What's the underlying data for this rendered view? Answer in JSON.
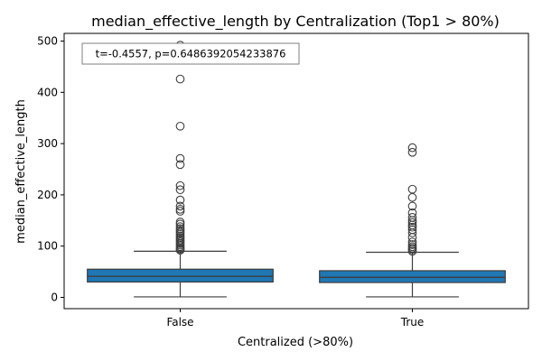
{
  "chart_data": {
    "type": "box",
    "title": "median_effective_length by Centralization (Top1 > 80%)",
    "xlabel": "Centralized (>80%)",
    "ylabel": "median_effective_length",
    "ylim": [
      -22,
      515
    ],
    "yticks": [
      0,
      100,
      200,
      300,
      400,
      500
    ],
    "grid": false,
    "legend": "none",
    "annotation": "t=-0.4557, p=0.6486392054233876",
    "categories": [
      "False",
      "True"
    ],
    "box_color": "#1f77b4",
    "groups": [
      {
        "label": "False",
        "whisker_low": 1,
        "q1": 30,
        "median": 41,
        "q3": 55,
        "whisker_high": 90,
        "outliers": [
          492,
          426,
          334,
          271,
          259,
          218,
          210,
          190,
          178,
          172,
          168,
          147,
          143,
          138,
          134,
          130,
          127,
          124,
          120,
          117,
          114,
          111,
          108,
          105,
          102,
          99,
          96,
          94,
          92
        ]
      },
      {
        "label": "True",
        "whisker_low": 1,
        "q1": 29,
        "median": 39,
        "q3": 52,
        "whisker_high": 88,
        "outliers": [
          292,
          283,
          211,
          195,
          178,
          165,
          156,
          150,
          146,
          141,
          137,
          132,
          126,
          117,
          108,
          103,
          99,
          96,
          93,
          90
        ]
      }
    ]
  }
}
